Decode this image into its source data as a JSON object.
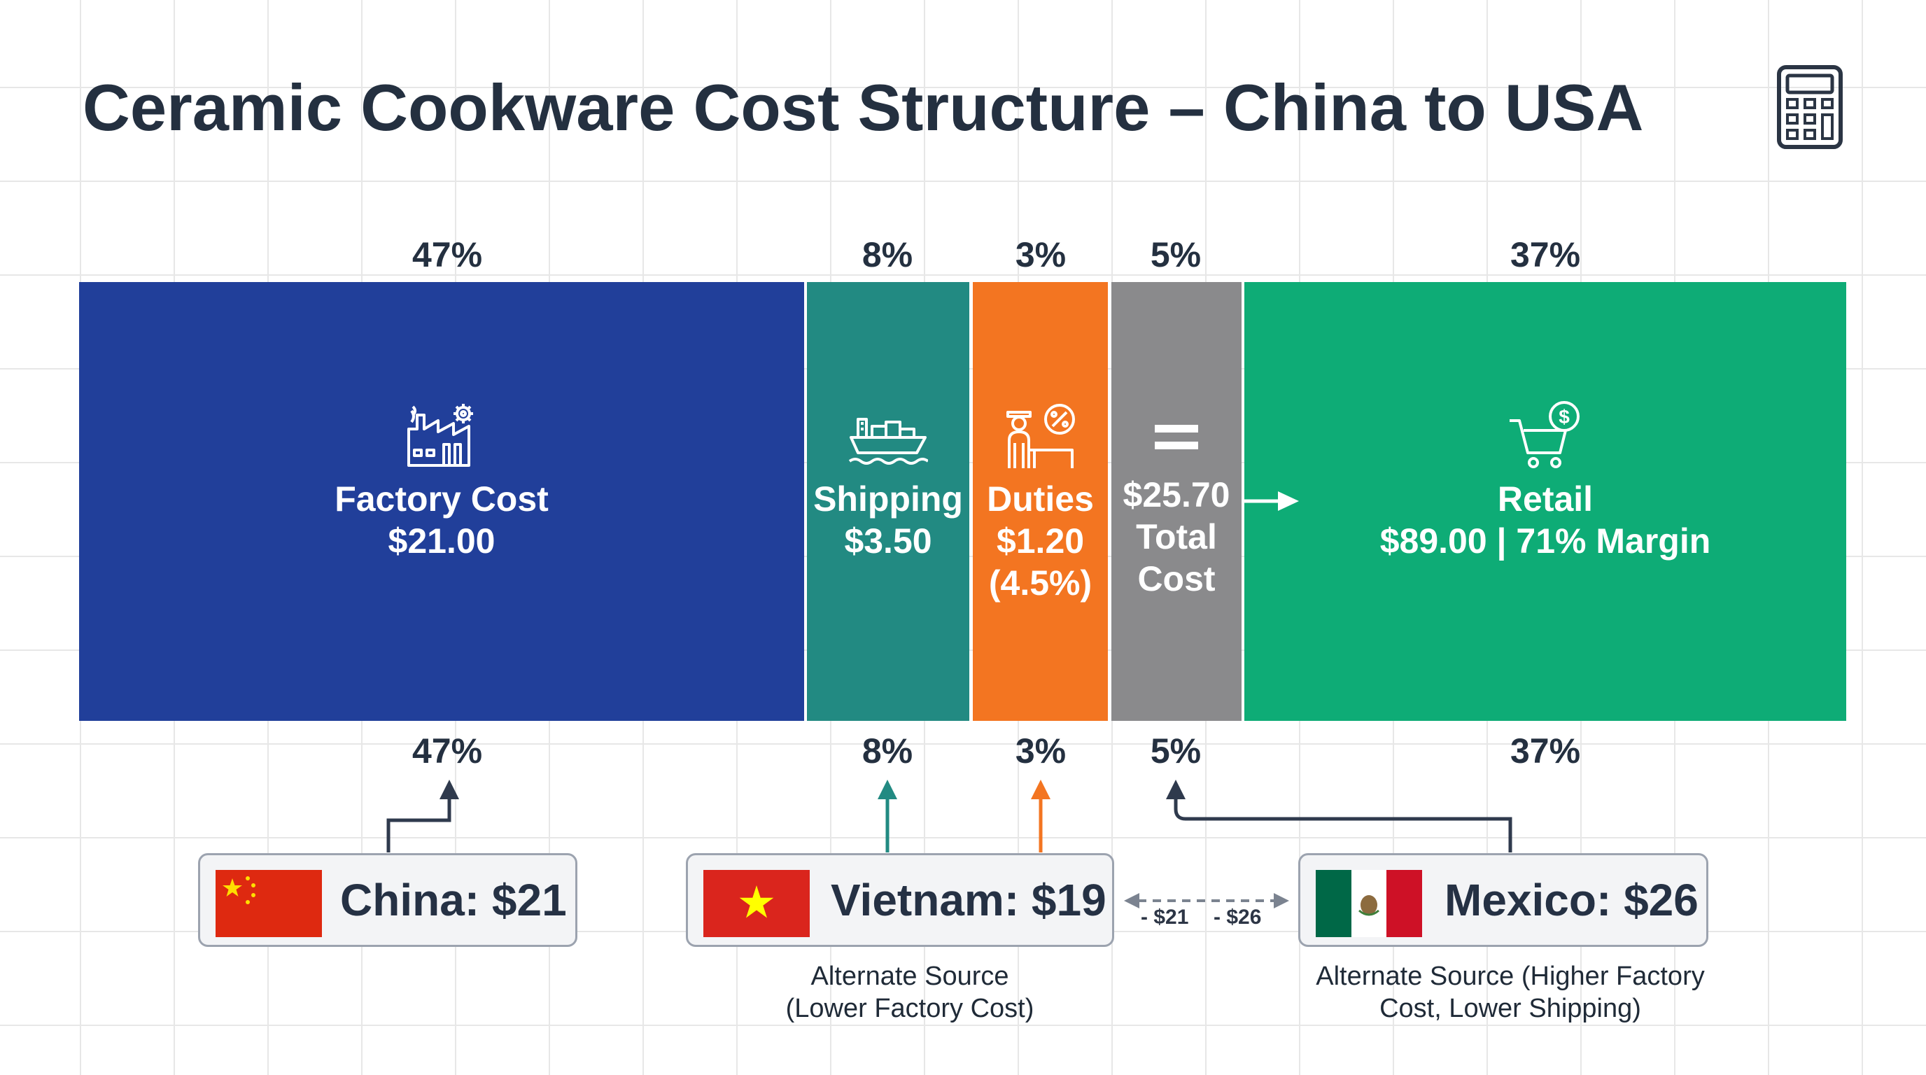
{
  "title": "Ceramic Cookware Cost Structure – China to USA",
  "chart_data": {
    "type": "bar",
    "orientation": "horizontal-stacked",
    "segments": [
      {
        "label": "Factory Cost",
        "value_text": "$21.00",
        "percent": 47,
        "percent_label": "47%",
        "color": "#213f9a",
        "icon": "factory-icon"
      },
      {
        "label": "Shipping",
        "value_text": "$3.50",
        "percent": 8,
        "percent_label": "8%",
        "color": "#228a82",
        "icon": "cargo-ship-icon"
      },
      {
        "label": "Duties",
        "value_text": "$1.20",
        "note": "(4.5%)",
        "percent": 3,
        "percent_label": "3%",
        "color": "#f37521",
        "icon": "customs-officer-icon"
      },
      {
        "label": "Total",
        "label2": "Cost",
        "value_text": "$25.70",
        "percent": 5,
        "percent_label": "5%",
        "color": "#8a8a8c",
        "icon": "equals-icon"
      },
      {
        "label": "Retail",
        "value_text": "$89.00 | 71% Margin",
        "percent": 37,
        "percent_label": "37%",
        "color": "#0eac76",
        "icon": "shopping-cart-dollar-icon"
      }
    ]
  },
  "sources": [
    {
      "country": "China",
      "label": "China: $21",
      "flag": "china-flag"
    },
    {
      "country": "Vietnam",
      "label": "Vietnam: $19",
      "flag": "vietnam-flag",
      "note_line1": "Alternate Source",
      "note_line2": "(Lower Factory Cost)"
    },
    {
      "country": "Mexico",
      "label": "Mexico: $26",
      "flag": "mexico-flag",
      "note_line1": "Alternate Source (Higher Factory",
      "note_line2": "Cost, Lower Shipping)"
    }
  ],
  "comparison": {
    "left": "- $21",
    "right": "- $26"
  },
  "colors": {
    "title": "#243040",
    "arrow_dark": "#2f3a4d",
    "arrow_teal": "#228a82",
    "arrow_orange": "#f37521"
  }
}
